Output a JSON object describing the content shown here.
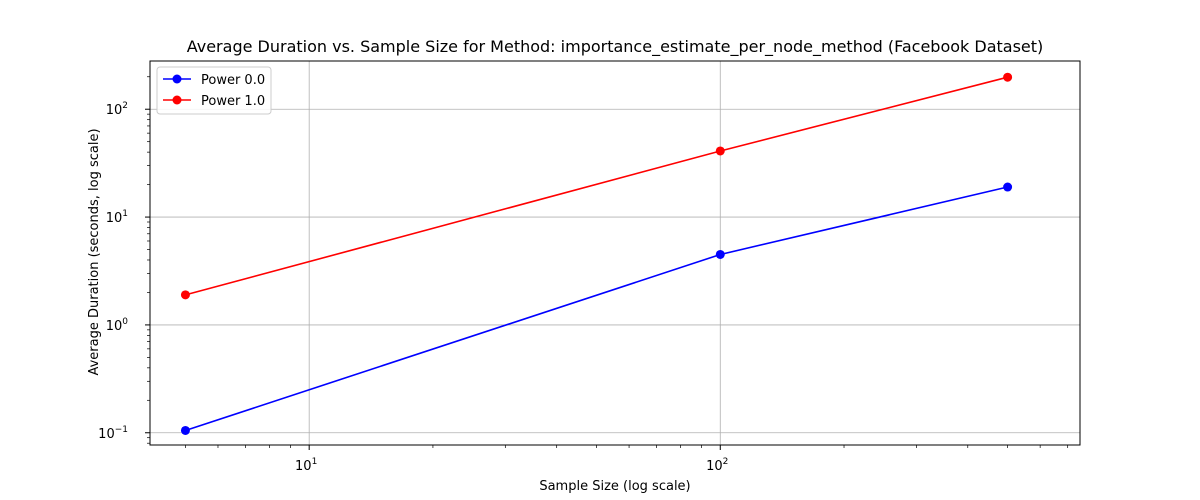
{
  "chart_data": {
    "type": "line",
    "title": "Average Duration vs. Sample Size for Method: importance_estimate_per_node_method (Facebook Dataset)",
    "xlabel": "Sample Size (log scale)",
    "ylabel": "Average Duration (seconds, log scale)",
    "xscale": "log",
    "yscale": "log",
    "xlim": [
      4.1,
      750
    ],
    "ylim": [
      0.077,
      280
    ],
    "grid": true,
    "legend_position": "top-left",
    "x_ticks": [
      {
        "value": 10,
        "base": "10",
        "exp": "1"
      },
      {
        "value": 100,
        "base": "10",
        "exp": "2"
      }
    ],
    "y_ticks": [
      {
        "value": 0.1,
        "base": "10",
        "exp": "−1"
      },
      {
        "value": 1,
        "base": "10",
        "exp": "0"
      },
      {
        "value": 10,
        "base": "10",
        "exp": "1"
      },
      {
        "value": 100,
        "base": "10",
        "exp": "2"
      }
    ],
    "series": [
      {
        "name": "Power 0.0",
        "color": "#0000ff",
        "x": [
          5,
          100,
          500
        ],
        "y": [
          0.105,
          4.5,
          19.0
        ]
      },
      {
        "name": "Power 1.0",
        "color": "#ff0000",
        "x": [
          5,
          100,
          500
        ],
        "y": [
          1.9,
          41.0,
          198.0
        ]
      }
    ]
  }
}
